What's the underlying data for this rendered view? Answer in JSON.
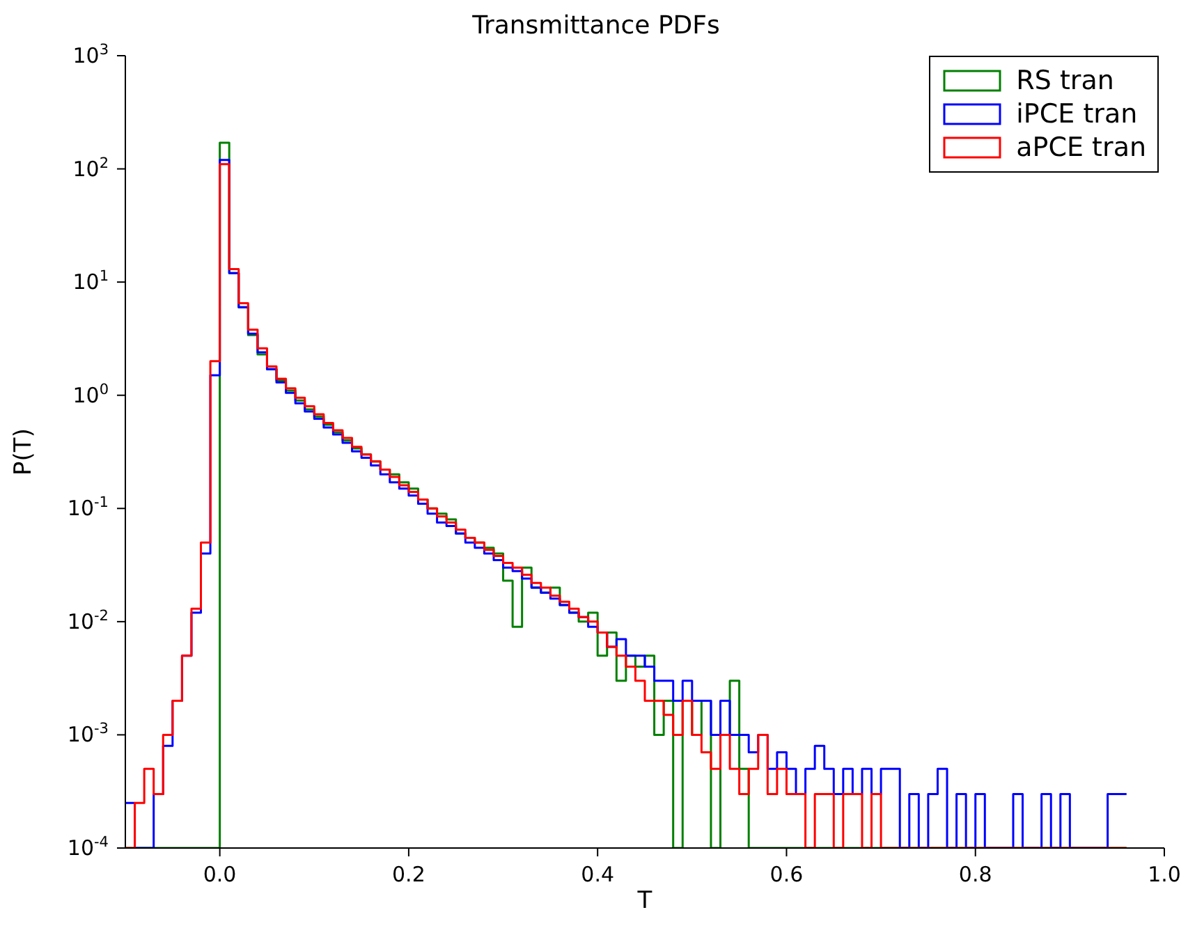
{
  "chart_data": {
    "type": "histogram",
    "title": "Transmittance PDFs",
    "xlabel": "T",
    "ylabel": "P(T)",
    "log": "y",
    "legend": "top right",
    "xlim": [
      -0.1,
      1.0
    ],
    "xticks": [
      {
        "value": 0,
        "label": "0.0"
      },
      0.2,
      0.4,
      0.6,
      0.8,
      {
        "value": 1,
        "label": "1.0"
      }
    ],
    "ylim": [
      0.0001,
      1000
    ],
    "yticks": [
      {
        "value": 0.0001,
        "label": "10$^{-4}$"
      },
      {
        "value": 0.001,
        "label": "10$^{-3}$"
      },
      {
        "value": 0.01,
        "label": "10$^{-2}$"
      },
      {
        "value": 0.1,
        "label": "10$^{-1}$"
      },
      {
        "value": 1,
        "label": "10$^{0}$"
      },
      {
        "value": 10,
        "label": "10$^{1}$"
      },
      {
        "value": 100,
        "label": "10$^{2}$"
      },
      {
        "value": 1000,
        "label": "10$^{3}$"
      }
    ],
    "bins": [
      -0.1,
      -0.09,
      -0.08,
      -0.07,
      -0.06,
      -0.05,
      -0.04,
      -0.03,
      -0.02,
      -0.01,
      0,
      0.01,
      0.02,
      0.03,
      0.04,
      0.05,
      0.06,
      0.07,
      0.08,
      0.09,
      0.1,
      0.11,
      0.12,
      0.13,
      0.14,
      0.15,
      0.16,
      0.17,
      0.18,
      0.19,
      0.2,
      0.21,
      0.22,
      0.23,
      0.24,
      0.25,
      0.26,
      0.27,
      0.28,
      0.29,
      0.3,
      0.31,
      0.32,
      0.33,
      0.34,
      0.35,
      0.36,
      0.37,
      0.38,
      0.39,
      0.4,
      0.41,
      0.42,
      0.43,
      0.44,
      0.45,
      0.46,
      0.47,
      0.48,
      0.49,
      0.5,
      0.51,
      0.52,
      0.53,
      0.54,
      0.55,
      0.56,
      0.57,
      0.58,
      0.59,
      0.6,
      0.61,
      0.62,
      0.63,
      0.64,
      0.65,
      0.66,
      0.67,
      0.68,
      0.69,
      0.7,
      0.71,
      0.72,
      0.73,
      0.74,
      0.75,
      0.76,
      0.77,
      0.78,
      0.79,
      0.8,
      0.81,
      0.82,
      0.83,
      0.84,
      0.85,
      0.86,
      0.87,
      0.88,
      0.89,
      0.9,
      0.91,
      0.92,
      0.93,
      0.94,
      0.95,
      0.96
    ],
    "series": [
      {
        "name": "RS tran",
        "color": "#008000",
        "values": [
          null,
          null,
          null,
          null,
          null,
          null,
          null,
          null,
          null,
          null,
          170,
          12,
          6,
          3.4,
          2.3,
          1.7,
          1.35,
          1.1,
          0.9,
          0.75,
          0.65,
          0.55,
          0.47,
          0.4,
          0.34,
          0.3,
          0.26,
          0.22,
          0.2,
          0.17,
          0.15,
          0.12,
          0.1,
          0.09,
          0.08,
          0.06,
          0.055,
          0.05,
          0.045,
          0.04,
          0.023,
          0.009,
          0.03,
          0.02,
          0.018,
          0.02,
          0.014,
          0.012,
          0.01,
          0.012,
          0.005,
          0.008,
          0.003,
          0.005,
          0.004,
          0.005,
          0.001,
          0.002,
          null,
          0.002,
          0.001,
          0.002,
          null,
          0.001,
          0.003,
          0.0005,
          null,
          null,
          null,
          null,
          null,
          null,
          null,
          null,
          null,
          null,
          null,
          null,
          null,
          null,
          null,
          null,
          null,
          null,
          null,
          null,
          null,
          null,
          null,
          null,
          null,
          null,
          null,
          null,
          null,
          null,
          null,
          null,
          null,
          null,
          null,
          null,
          null,
          null,
          null,
          null
        ]
      },
      {
        "name": "iPCE tran",
        "color": "#0000ff",
        "values": [
          0.00025,
          null,
          null,
          0.0003,
          0.0008,
          0.002,
          0.005,
          0.012,
          0.04,
          1.5,
          120,
          12,
          6,
          3.5,
          2.4,
          1.7,
          1.3,
          1.05,
          0.85,
          0.72,
          0.62,
          0.52,
          0.45,
          0.38,
          0.32,
          0.28,
          0.24,
          0.2,
          0.17,
          0.15,
          0.13,
          0.11,
          0.09,
          0.075,
          0.07,
          0.06,
          0.05,
          0.045,
          0.04,
          0.035,
          0.03,
          0.028,
          0.024,
          0.02,
          0.018,
          0.016,
          0.014,
          0.012,
          0.011,
          0.009,
          0.008,
          0.006,
          0.007,
          0.005,
          0.005,
          0.004,
          0.003,
          0.003,
          0.002,
          0.003,
          0.002,
          0.002,
          0.001,
          0.002,
          0.001,
          0.001,
          0.0007,
          0.001,
          0.0005,
          0.0007,
          0.0005,
          0.0003,
          0.0005,
          0.0008,
          0.0005,
          0.0003,
          0.0005,
          0.0003,
          0.0005,
          0.0003,
          0.0005,
          0.0005,
          null,
          0.0003,
          null,
          0.0003,
          0.0005,
          null,
          0.0003,
          null,
          0.0003,
          null,
          null,
          null,
          0.0003,
          null,
          null,
          0.0003,
          null,
          0.0003,
          null,
          null,
          null,
          null,
          0.0003,
          0.0003
        ]
      },
      {
        "name": "aPCE tran",
        "color": "#ff0000",
        "values": [
          null,
          0.00025,
          0.0005,
          0.0003,
          0.001,
          0.002,
          0.005,
          0.013,
          0.05,
          2,
          110,
          13,
          6.5,
          3.8,
          2.6,
          1.8,
          1.4,
          1.15,
          0.95,
          0.8,
          0.68,
          0.57,
          0.49,
          0.42,
          0.35,
          0.3,
          0.26,
          0.22,
          0.19,
          0.16,
          0.14,
          0.12,
          0.1,
          0.085,
          0.075,
          0.065,
          0.055,
          0.05,
          0.043,
          0.038,
          0.033,
          0.03,
          0.026,
          0.022,
          0.02,
          0.017,
          0.015,
          0.013,
          0.011,
          0.01,
          0.008,
          0.006,
          0.005,
          0.004,
          0.003,
          0.002,
          0.002,
          0.0015,
          0.001,
          0.002,
          0.001,
          0.0007,
          0.0005,
          0.001,
          0.0005,
          0.0003,
          0.0005,
          0.001,
          0.0003,
          0.0005,
          0.0003,
          0.0003,
          null,
          0.0003,
          0.0003,
          null,
          0.0003,
          0.0003,
          null,
          0.0003,
          null,
          null,
          null,
          null,
          null,
          null,
          null,
          null,
          null,
          null,
          null,
          null,
          null,
          null,
          null,
          null,
          null,
          null,
          null,
          null,
          null,
          null,
          null,
          null,
          null,
          null
        ]
      }
    ]
  }
}
